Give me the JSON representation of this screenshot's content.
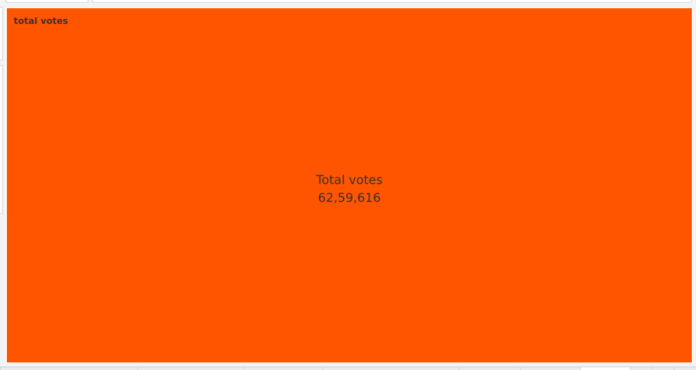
{
  "sheet": {
    "title": "total votes"
  },
  "chart_data": {
    "type": "treemap",
    "title": "",
    "categories": [
      "Total votes"
    ],
    "values": [
      6259616
    ],
    "labels": [
      {
        "name": "Total votes",
        "value_text": "62,59,616"
      }
    ],
    "colors": {
      "fill": "#ff5500",
      "label_text": "#333333"
    },
    "legend": "none"
  },
  "tabs": {
    "count": 8,
    "active_index": 5
  }
}
